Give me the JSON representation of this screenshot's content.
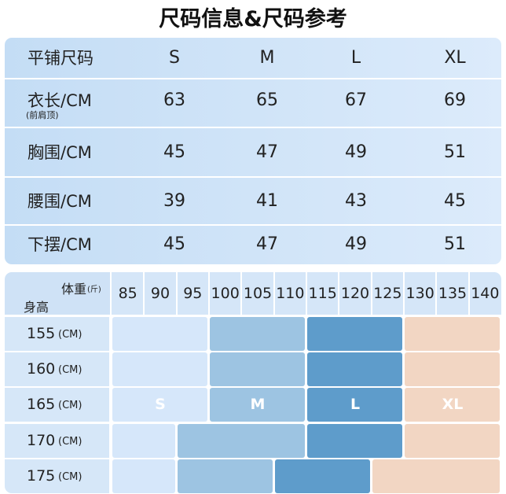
{
  "title": "尺码信息&尺码参考",
  "size_table": {
    "header": [
      "平铺尺码",
      "S",
      "M",
      "L",
      "XL"
    ],
    "rows": [
      {
        "label": "衣长/CM",
        "note": "(前肩顶)",
        "values": [
          63,
          65,
          67,
          69
        ]
      },
      {
        "label": "胸围/CM",
        "values": [
          45,
          47,
          49,
          51
        ]
      },
      {
        "label": "腰围/CM",
        "values": [
          39,
          41,
          43,
          45
        ]
      },
      {
        "label": "下摆/CM",
        "values": [
          45,
          47,
          49,
          51
        ]
      }
    ]
  },
  "size_chart": {
    "weight_label": "体重",
    "weight_unit": "(斤)",
    "height_label": "身高",
    "weights": [
      85,
      90,
      95,
      100,
      105,
      110,
      115,
      120,
      125,
      130,
      135,
      140
    ],
    "colors": {
      "S": "#d6e7fa",
      "M": "#9dc4e2",
      "L": "#5e9ccb",
      "XL": "#f2d6c3"
    },
    "rows": [
      {
        "height": 155,
        "unit": "(CM)",
        "sizes": [
          "S",
          "S",
          "S",
          "M",
          "M",
          "M",
          "L",
          "L",
          "L",
          "XL",
          "XL",
          "XL"
        ]
      },
      {
        "height": 160,
        "unit": "(CM)",
        "sizes": [
          "S",
          "S",
          "S",
          "M",
          "M",
          "M",
          "L",
          "L",
          "L",
          "XL",
          "XL",
          "XL"
        ]
      },
      {
        "height": 165,
        "unit": "(CM)",
        "labeled": true,
        "sizes": [
          "S",
          "S",
          "S",
          "M",
          "M",
          "M",
          "L",
          "L",
          "L",
          "XL",
          "XL",
          "XL"
        ]
      },
      {
        "height": 170,
        "unit": "(CM)",
        "sizes": [
          "S",
          "S",
          "M",
          "M",
          "M",
          "M",
          "L",
          "L",
          "L",
          "XL",
          "XL",
          "XL"
        ]
      },
      {
        "height": 175,
        "unit": "(CM)",
        "sizes": [
          "S",
          "S",
          "M",
          "M",
          "M",
          "L",
          "L",
          "L",
          "XL",
          "XL",
          "XL",
          "XL"
        ]
      }
    ]
  }
}
